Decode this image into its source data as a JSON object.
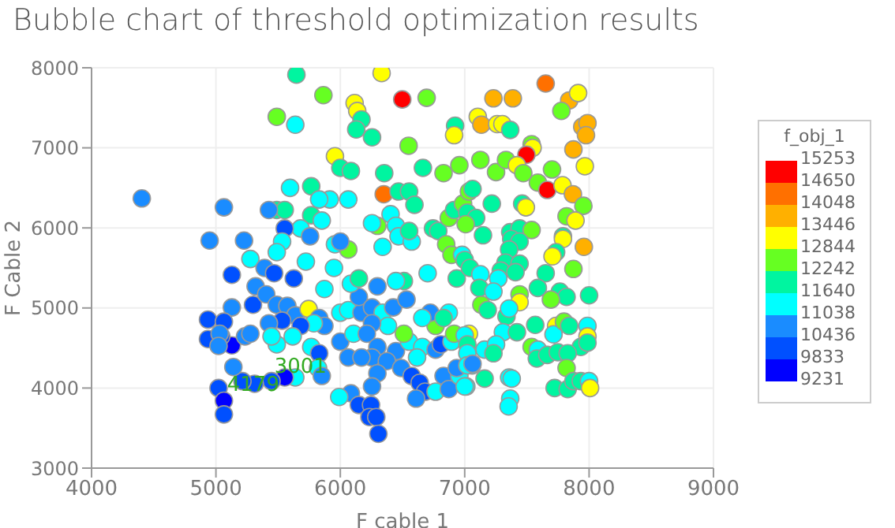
{
  "chart_data": {
    "type": "scatter",
    "title": "Bubble chart of threshold optimization results",
    "xlabel": "F cable 1",
    "ylabel": "F Cable 2",
    "legend_title": "f_obj_1",
    "xlim": [
      4000,
      9000
    ],
    "xticks": [
      4000,
      5000,
      6000,
      7000,
      8000,
      9000
    ],
    "ylim": [
      3000,
      8000
    ],
    "yticks": [
      3000,
      4000,
      5000,
      6000,
      7000,
      8000
    ],
    "grid": true,
    "marker": "circle",
    "clim": [
      9231,
      15253
    ],
    "cticks": [
      9231,
      9833,
      10436,
      11038,
      11640,
      12242,
      12844,
      13446,
      14048,
      14650,
      15253
    ],
    "annotations": [
      {
        "text": "3001",
        "x": 5680,
        "y": 4280
      },
      {
        "text": "4179",
        "x": 5300,
        "y": 4060
      }
    ],
    "x": [
      4404,
      5647,
      6332,
      6498,
      5864,
      6694,
      5489,
      5638,
      6115,
      6136,
      6170,
      6128,
      6255,
      5957,
      6549,
      6353,
      6000,
      6085,
      6349,
      6468,
      6553,
      6596,
      6664,
      6830,
      6957,
      6923,
      6915,
      6298,
      6404,
      6447,
      6468,
      6255,
      6340,
      6574,
      6745,
      6787,
      6851,
      6894,
      6872,
      6915,
      6987,
      6064,
      5957,
      6000,
      5949,
      5915,
      6064,
      5596,
      5766,
      5830,
      5766,
      5851,
      5681,
      5489,
      5553,
      5426,
      5064,
      5553,
      5532,
      5489,
      5757,
      4949,
      5226,
      5277,
      5391,
      5468,
      5626,
      5128,
      5723,
      5872,
      5128,
      5298,
      5319,
      5404,
      5489,
      5574,
      5638,
      5532,
      5426,
      5745,
      5830,
      5872,
      5787,
      5681,
      5617,
      5489,
      5447,
      5766,
      5830,
      5821,
      5851,
      5638,
      5553,
      5447,
      5311,
      5213,
      5140,
      5128,
      5043,
      4936,
      4936,
      5064,
      5030,
      5021,
      5021,
      5064,
      5064,
      5234,
      5277,
      6000,
      6106,
      6000,
      6064,
      6170,
      6149,
      6085,
      6298,
      6255,
      6340,
      6425,
      6532,
      6383,
      6255,
      6213,
      6298,
      6447,
      6553,
      6659,
      6617,
      6766,
      6809,
      6894,
      6915,
      6766,
      6723,
      6659,
      6872,
      6830,
      6511,
      6255,
      6374,
      6064,
      6170,
      6298,
      6255,
      6085,
      5991,
      6149,
      6247,
      6234,
      6289,
      6306,
      6489,
      6574,
      6638,
      6681,
      6609,
      6766,
      6830,
      6872,
      6957,
      7013,
      6936,
      7060,
      7034,
      6553,
      6511,
      6702,
      6936,
      6979,
      6447,
      6149,
      7651,
      7231,
      7387,
      7840,
      7912,
      7777,
      7105,
      7134,
      7261,
      7303,
      7366,
      7945,
      7987,
      7975,
      7538,
      7546,
      7496,
      7874,
      7126,
      7252,
      7332,
      7420,
      7471,
      7702,
      7966,
      7588,
      7664,
      7786,
      7870,
      7954,
      7034,
      7063,
      7218,
      7462,
      7492,
      7819,
      7891,
      7021,
      7092,
      7008,
      7147,
      7366,
      7441,
      7538,
      7374,
      7441,
      7357,
      7790,
      7790,
      7958,
      7735,
      7706,
      7874,
      7000,
      7042,
      7328,
      7441,
      7290,
      7270,
      7408,
      7651,
      7126,
      7118,
      7231,
      7441,
      7588,
      7765,
      7819,
      7693,
      7441,
      7134,
      7185,
      8000,
      7336,
      7357,
      7567,
      7735,
      7714,
      7798,
      7840,
      7987,
      7987,
      7933,
      7987,
      7307,
      7420,
      7538,
      7588,
      7580,
      7664,
      7748,
      7828,
      7819,
      7000,
      7021,
      7160,
      7252,
      7231,
      7021,
      7021,
      7063,
      7160,
      7357,
      7378,
      7366,
      7353,
      7000,
      7723,
      7828,
      7874,
      7933,
      8000,
      8008
    ],
    "values": [
      6368,
      7914,
      7934,
      7605,
      7658,
      7625,
      7388,
      7289,
      7559,
      7460,
      7355,
      7230,
      7132,
      6895,
      7026,
      6684,
      6750,
      6711,
      6421,
      6454,
      6454,
      6289,
      6750,
      6684,
      6783,
      7276,
      7158,
      6026,
      6171,
      6026,
      5895,
      6059,
      5763,
      5829,
      5993,
      5961,
      5796,
      5664,
      6125,
      6224,
      6303,
      5730,
      5796,
      5829,
      5500,
      6355,
      6355,
      6500,
      6520,
      6355,
      6158,
      6092,
      5993,
      6224,
      6224,
      6224,
      6257,
      5993,
      5829,
      5697,
      5895,
      5842,
      5842,
      5612,
      5500,
      5434,
      5368,
      5414,
      5579,
      5237,
      5007,
      5040,
      5270,
      5171,
      5040,
      5026,
      4908,
      4842,
      4809,
      4987,
      4875,
      4776,
      4809,
      4776,
      4645,
      4546,
      4645,
      4513,
      4434,
      4250,
      4151,
      4132,
      4132,
      4086,
      4053,
      4086,
      4263,
      4533,
      4645,
      4612,
      4855,
      4829,
      4678,
      4526,
      4000,
      3842,
      3671,
      4645,
      4678,
      4579,
      4678,
      4941,
      4974,
      4941,
      5138,
      5303,
      5270,
      5007,
      4941,
      5007,
      5105,
      4776,
      4809,
      4678,
      4513,
      4461,
      4579,
      4513,
      4382,
      4480,
      4546,
      4579,
      4678,
      4776,
      4941,
      4875,
      4941,
      4875,
      4678,
      4382,
      4336,
      4382,
      4382,
      4184,
      4020,
      3934,
      3888,
      3789,
      3789,
      3638,
      3638,
      3428,
      4250,
      4151,
      4066,
      3954,
      3868,
      3954,
      4151,
      3987,
      4151,
      4020,
      4250,
      4283,
      4678,
      5961,
      5336,
      5434,
      5368,
      5664,
      5336,
      5368,
      7803,
      7618,
      7618,
      7592,
      7684,
      7461,
      7388,
      7289,
      7296,
      7296,
      7224,
      7263,
      7309,
      7158,
      7046,
      7000,
      6914,
      6980,
      6849,
      6697,
      6849,
      6783,
      6684,
      6730,
      6770,
      6566,
      6474,
      6533,
      6421,
      6276,
      6454,
      6487,
      6303,
      6303,
      6257,
      6145,
      6092,
      6191,
      6125,
      6046,
      5908,
      5947,
      5993,
      5974,
      5862,
      5829,
      5730,
      5895,
      5862,
      5763,
      5697,
      5645,
      5487,
      5599,
      5500,
      5566,
      5553,
      5467,
      5368,
      5447,
      5434,
      5421,
      5250,
      5204,
      5171,
      5250,
      5204,
      5138,
      5105,
      5072,
      5040,
      4974,
      5158,
      4895,
      4993,
      4789,
      4776,
      4671,
      4829,
      4776,
      4776,
      4645,
      4513,
      4566,
      4697,
      4697,
      4513,
      4480,
      4368,
      4414,
      4447,
      4434,
      4250,
      4658,
      4546,
      4480,
      4546,
      4434,
      4434,
      4283,
      4303,
      4118,
      4132,
      4118,
      3868,
      3770,
      4020,
      4000,
      3987,
      4086,
      4086,
      4086,
      4000
    ],
    "colors": [
      "#1a8cff",
      "#00f5a0",
      "#ffff00",
      "#ff0000",
      "#66ff22",
      "#66ff22",
      "#66ff22",
      "#00ffff",
      "#ffff00",
      "#ffff00",
      "#00f5a0",
      "#00f5a0",
      "#00f5a0",
      "#ffff00",
      "#66ff22",
      "#00f5a0",
      "#00f5a0",
      "#00f5a0",
      "#ff7000",
      "#00f5a0",
      "#00f5a0",
      "#00f5a0",
      "#00f5a0",
      "#66ff22",
      "#66ff22",
      "#00f5a0",
      "#ffff00",
      "#66ff22",
      "#00ffff",
      "#00ffff",
      "#00ffff",
      "#00ffff",
      "#00ffff",
      "#00ffff",
      "#00f5a0",
      "#00f5a0",
      "#66ff22",
      "#66ff22",
      "#66ff22",
      "#00f5a0",
      "#66ff22",
      "#66ff22",
      "#00ffff",
      "#1a8cff",
      "#00ffff",
      "#00ffff",
      "#00ffff",
      "#00ffff",
      "#00f5a0",
      "#00ffff",
      "#00f5a0",
      "#00ffff",
      "#00ffff",
      "#00f5a0",
      "#00f5a0",
      "#1a8cff",
      "#1a8cff",
      "#0050ff",
      "#00ffff",
      "#00ffff",
      "#1a8cff",
      "#1a8cff",
      "#1a8cff",
      "#00ffff",
      "#1a8cff",
      "#0050ff",
      "#0050ff",
      "#0050ff",
      "#00ffff",
      "#00ffff",
      "#1a8cff",
      "#0050ff",
      "#1a8cff",
      "#1a8cff",
      "#1a8cff",
      "#1a8cff",
      "#1a8cff",
      "#0050ff",
      "#1a8cff",
      "#ffff00",
      "#1a8cff",
      "#1a8cff",
      "#00ffff",
      "#0050ff",
      "#00ffff",
      "#00ffff",
      "#00ffff",
      "#00ffff",
      "#0050ff",
      "#00ffff",
      "#1a8cff",
      "#00ffff",
      "#0000ff",
      "#0050ff",
      "#0050ff",
      "#0050ff",
      "#1a8cff",
      "#0000ff",
      "#0050ff",
      "#0050ff",
      "#0050ff",
      "#0050ff",
      "#1a8cff",
      "#1a8cff",
      "#0050ff",
      "#0000ff",
      "#0050ff",
      "#1a8cff",
      "#1a8cff",
      "#1a8cff",
      "#00ffff",
      "#00ffff",
      "#00ffff",
      "#1a8cff",
      "#1a8cff",
      "#00ffff",
      "#1a8cff",
      "#1a8cff",
      "#00ffff",
      "#1a8cff",
      "#1a8cff",
      "#00ffff",
      "#1a8cff",
      "#1a8cff",
      "#1a8cff",
      "#1a8cff",
      "#00ffff",
      "#00ffff",
      "#00ffff",
      "#1a8cff",
      "#0050ff",
      "#00ffff",
      "#66ff22",
      "#66ff22",
      "#1a8cff",
      "#00ffff",
      "#00ffff",
      "#00f5a0",
      "#66ff22",
      "#1a8cff",
      "#1a8cff",
      "#1a8cff",
      "#1a8cff",
      "#1a8cff",
      "#1a8cff",
      "#1a8cff",
      "#00ffff",
      "#0050ff",
      "#0050ff",
      "#0050ff",
      "#0050ff",
      "#0050ff",
      "#1a8cff",
      "#0050ff",
      "#0050ff",
      "#0050ff",
      "#1a8cff",
      "#00ffff",
      "#1a8cff",
      "#1a8cff",
      "#00ffff",
      "#00ffff",
      "#1a8cff",
      "#00ffff",
      "#ffff00",
      "#00f5a0",
      "#00f5a0",
      "#00ffff",
      "#00f5a0",
      "#00ffff",
      "#00ffff",
      "#00f5a0",
      "#ff7000",
      "#ffb000",
      "#ffb000",
      "#ffb000",
      "#ffff00",
      "#66ff22",
      "#ffff00",
      "#ffb000",
      "#ffff00",
      "#ffff00",
      "#00f5a0",
      "#ffb000",
      "#ffb000",
      "#ffb000",
      "#66ff22",
      "#ffff00",
      "#ff0000",
      "#ffb000",
      "#66ff22",
      "#66ff22",
      "#66ff22",
      "#ffff00",
      "#66ff22",
      "#66ff22",
      "#ffff00",
      "#66ff22",
      "#ff0000",
      "#ffff00",
      "#ffb000",
      "#66ff22",
      "#66ff22",
      "#00f5a0",
      "#00f5a0",
      "#00f5a0",
      "#ffff00",
      "#66ff22",
      "#ffff00",
      "#00f5a0",
      "#00f5a0",
      "#66ff22",
      "#00f5a0",
      "#00f5a0",
      "#00f5a0",
      "#66ff22",
      "#00f5a0",
      "#00f5a0",
      "#00f5a0",
      "#00f5a0",
      "#ffff00",
      "#ffb000",
      "#00f5a0",
      "#ffff00",
      "#66ff22",
      "#00f5a0",
      "#00f5a0",
      "#00f5a0",
      "#00f5a0",
      "#00f5a0",
      "#00ffff",
      "#00f5a0",
      "#00f5a0",
      "#00ffff",
      "#00f5a0",
      "#00ffff",
      "#66ff22",
      "#00f5a0",
      "#00f5a0",
      "#00f5a0",
      "#66ff22",
      "#ffff00",
      "#66ff22",
      "#00f5a0",
      "#00f5a0",
      "#00f5a0",
      "#00ffff",
      "#00f5a0",
      "#ffff00",
      "#00ffff",
      "#66ff22",
      "#00f5a0",
      "#00ffff",
      "#ffff00",
      "#00f5a0",
      "#00f5a0",
      "#00ffff",
      "#00f5a0",
      "#66ff22",
      "#00ffff",
      "#00f5a0",
      "#00f5a0",
      "#00f5a0",
      "#00f5a0",
      "#66ff22",
      "#00ffff",
      "#00f5a0",
      "#00ffff",
      "#00ffff",
      "#00f5a0",
      "#00ffff",
      "#00ffff",
      "#1a8cff",
      "#00f5a0",
      "#00ffff",
      "#00ffff",
      "#00ffff",
      "#00ffff",
      "#00ffff",
      "#00f5a0",
      "#00f5a0",
      "#00f5a0",
      "#00f5a0",
      "#00ffff",
      "#ffff00"
    ]
  }
}
